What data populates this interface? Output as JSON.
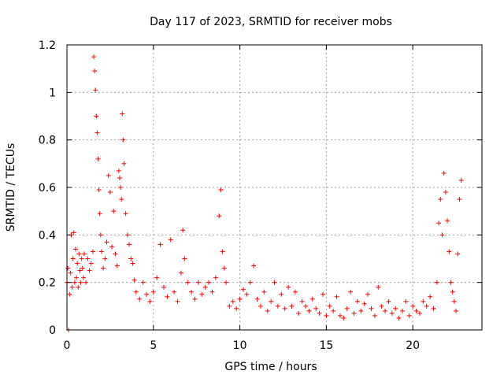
{
  "chart_data": {
    "type": "scatter",
    "title": "Day 117 of 2023, SRMTID for receiver mobs",
    "xlabel": "GPS time / hours",
    "ylabel": "SRMTID / TECUs",
    "xlim": [
      0,
      24
    ],
    "ylim": [
      0,
      1.2
    ],
    "xticks": [
      0,
      5,
      10,
      15,
      20
    ],
    "xtick_labels": [
      "0",
      "5",
      "10",
      "15",
      "20"
    ],
    "yticks": [
      0,
      0.2,
      0.4,
      0.6,
      0.8,
      1.0,
      1.2
    ],
    "ytick_labels": [
      "0",
      "0.2",
      "0.4",
      "0.6",
      "0.8",
      "1",
      "1.2"
    ],
    "grid": true,
    "marker": "plus",
    "series": [
      {
        "name": "SRMTID",
        "color": "#ff0000",
        "x": [
          0.0,
          0.05,
          0.1,
          0.15,
          0.2,
          0.25,
          0.3,
          0.35,
          0.4,
          0.45,
          0.5,
          0.55,
          0.6,
          0.65,
          0.7,
          0.75,
          0.8,
          0.85,
          0.9,
          0.95,
          1.0,
          1.1,
          1.2,
          1.3,
          1.4,
          1.5,
          1.55,
          1.6,
          1.65,
          1.7,
          1.75,
          1.8,
          1.85,
          1.9,
          1.95,
          2.0,
          2.1,
          2.2,
          2.3,
          2.4,
          2.5,
          2.6,
          2.7,
          2.8,
          2.9,
          3.0,
          3.05,
          3.1,
          3.15,
          3.2,
          3.25,
          3.3,
          3.4,
          3.5,
          3.6,
          3.7,
          3.8,
          3.9,
          4.0,
          4.2,
          4.4,
          4.6,
          4.8,
          5.0,
          5.2,
          5.4,
          5.6,
          5.8,
          6.0,
          6.2,
          6.4,
          6.6,
          6.7,
          6.8,
          7.0,
          7.2,
          7.4,
          7.6,
          7.8,
          8.0,
          8.2,
          8.4,
          8.6,
          8.8,
          8.9,
          9.0,
          9.1,
          9.2,
          9.4,
          9.6,
          9.8,
          10.0,
          10.2,
          10.4,
          10.6,
          10.8,
          11.0,
          11.2,
          11.4,
          11.6,
          11.8,
          12.0,
          12.2,
          12.4,
          12.6,
          12.8,
          13.0,
          13.2,
          13.4,
          13.6,
          13.8,
          14.0,
          14.2,
          14.4,
          14.6,
          14.8,
          15.0,
          15.2,
          15.4,
          15.6,
          15.8,
          16.0,
          16.2,
          16.4,
          16.6,
          16.8,
          17.0,
          17.2,
          17.4,
          17.6,
          17.8,
          18.0,
          18.2,
          18.4,
          18.6,
          18.8,
          19.0,
          19.2,
          19.4,
          19.6,
          19.8,
          20.0,
          20.2,
          20.4,
          20.6,
          20.8,
          21.0,
          21.2,
          21.4,
          21.5,
          21.6,
          21.7,
          21.8,
          21.9,
          22.0,
          22.1,
          22.2,
          22.3,
          22.4,
          22.5,
          22.6,
          22.7,
          22.8
        ],
        "y": [
          0.2,
          0.26,
          0.0,
          0.15,
          0.24,
          0.4,
          0.18,
          0.3,
          0.41,
          0.2,
          0.34,
          0.22,
          0.28,
          0.18,
          0.32,
          0.25,
          0.2,
          0.3,
          0.26,
          0.22,
          0.32,
          0.2,
          0.3,
          0.25,
          0.28,
          0.33,
          1.15,
          1.09,
          1.01,
          0.9,
          0.83,
          0.72,
          0.59,
          0.49,
          0.4,
          0.33,
          0.26,
          0.3,
          0.37,
          0.65,
          0.58,
          0.35,
          0.5,
          0.32,
          0.27,
          0.67,
          0.64,
          0.6,
          0.55,
          0.91,
          0.8,
          0.7,
          0.49,
          0.4,
          0.36,
          0.3,
          0.28,
          0.21,
          0.16,
          0.13,
          0.2,
          0.15,
          0.12,
          0.16,
          0.22,
          0.36,
          0.18,
          0.14,
          0.38,
          0.16,
          0.12,
          0.24,
          0.42,
          0.3,
          0.2,
          0.16,
          0.13,
          0.2,
          0.15,
          0.18,
          0.2,
          0.16,
          0.22,
          0.48,
          0.59,
          0.33,
          0.26,
          0.2,
          0.1,
          0.12,
          0.09,
          0.13,
          0.17,
          0.15,
          0.2,
          0.27,
          0.13,
          0.1,
          0.16,
          0.08,
          0.12,
          0.2,
          0.1,
          0.15,
          0.09,
          0.18,
          0.1,
          0.16,
          0.07,
          0.12,
          0.1,
          0.08,
          0.13,
          0.09,
          0.07,
          0.15,
          0.06,
          0.1,
          0.08,
          0.14,
          0.06,
          0.05,
          0.09,
          0.16,
          0.07,
          0.12,
          0.08,
          0.11,
          0.15,
          0.09,
          0.06,
          0.18,
          0.1,
          0.08,
          0.12,
          0.07,
          0.09,
          0.05,
          0.08,
          0.12,
          0.06,
          0.1,
          0.08,
          0.07,
          0.12,
          0.1,
          0.14,
          0.09,
          0.2,
          0.45,
          0.55,
          0.4,
          0.66,
          0.58,
          0.46,
          0.33,
          0.2,
          0.16,
          0.12,
          0.08,
          0.32,
          0.55,
          0.63
        ]
      }
    ]
  }
}
